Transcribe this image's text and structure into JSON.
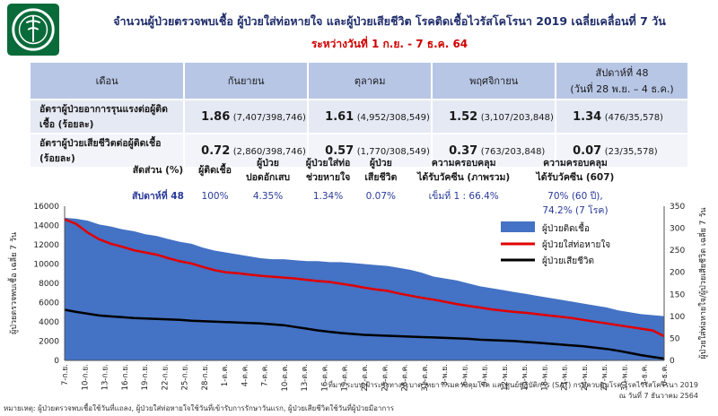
{
  "header": {
    "title": "จำนวนผู้ป่วยตรวจพบเชื้อ ผู้ป่วยใส่ท่อหายใจ และผู้ป่วยเสียชีวิต โรคติดเชื้อไวรัสโคโรนา 2019 เฉลี่ยเคลื่อนที่ 7 วัน",
    "subtitle": "ระหว่างวันที่ 1 ก.ย. - 7 ธ.ค. 64",
    "logo_icon": "moph-emblem-icon",
    "accent_color": "#1f2d6b",
    "subtitle_color": "#d10000"
  },
  "rate_table": {
    "header": [
      "เดือน",
      "กันยายน",
      "ตุลาคม",
      "พฤศจิกายน",
      "สัปดาห์ที่ 48",
      "(วันที่ 28 พ.ย. – 4 ธ.ค.)"
    ],
    "rows": [
      {
        "label": "อัตราผู้ป่วยอาการรุนแรงต่อผู้ติดเชื้อ (ร้อยละ)",
        "cells": [
          [
            "1.86",
            "(7,407/398,746)"
          ],
          [
            "1.61",
            "(4,952/308,549)"
          ],
          [
            "1.52",
            "(3,107/203,848)"
          ],
          [
            "1.34",
            "(476/35,578)"
          ]
        ]
      },
      {
        "label": "อัตราผู้ป่วยเสียชีวิตต่อผู้ติดเชื้อ (ร้อยละ)",
        "cells": [
          [
            "0.72",
            "(2,860/398,746)"
          ],
          [
            "0.57",
            "(1,770/308,549)"
          ],
          [
            "0.37",
            "(763/203,848)"
          ],
          [
            "0.07",
            "(23/35,578)"
          ]
        ]
      }
    ]
  },
  "proportion_table": {
    "headers": [
      "สัดส่วน (%)",
      "ผู้ติดเชื้อ",
      "ผู้ป่วย\nปอดอักเสบ",
      "ผู้ป่วยใส่ท่อ\nช่วยหายใจ",
      "ผู้ป่วย\nเสียชีวิต",
      "ความครอบคลุม\nได้รับวัคซีน (ภาพรวม)",
      "ความครอบคลุม\nได้รับวัคซีน (607)"
    ],
    "values": [
      "สัปดาห์ที่ 48",
      "100%",
      "4.35%",
      "1.34%",
      "0.07%",
      "เข็มที่ 1 : 66.4%",
      "70% (60 ปี),\n74.2% (7 โรค)"
    ]
  },
  "chart_data": {
    "type": "area",
    "xlabel": "",
    "ylabel": "ผู้ป่วยตรวจพบเชื้อ เฉลี่ย 7 วัน",
    "y2label": "ผู้ป่วยใส่ท่อหายใจ/ผู้ป่วยเสียชีวิต เฉลี่ย 7 วัน",
    "ylim": [
      0,
      16000
    ],
    "y2lim": [
      0,
      350
    ],
    "yticks": [
      "0",
      "2000",
      "4000",
      "6000",
      "8000",
      "10000",
      "12000",
      "14000",
      "16000"
    ],
    "y2ticks": [
      "0",
      "50",
      "100",
      "150",
      "200",
      "250",
      "300",
      "350"
    ],
    "x_start": "7-ก.ย.",
    "x_tick_labels": [
      "7-ก.ย.",
      "10-ก.ย.",
      "13-ก.ย.",
      "16-ก.ย.",
      "19-ก.ย.",
      "22-ก.ย.",
      "25-ก.ย.",
      "28-ก.ย.",
      "1-ต.ค.",
      "4-ต.ค.",
      "7-ต.ค.",
      "10-ต.ค.",
      "13-ต.ค.",
      "16-ต.ค.",
      "19-ต.ค.",
      "22-ต.ค.",
      "25-ต.ค.",
      "28-ต.ค.",
      "31-ต.ค.",
      "3-พ.ย.",
      "6-พ.ย.",
      "9-พ.ย.",
      "12-พ.ย.",
      "15-พ.ย.",
      "18-พ.ย.",
      "21-พ.ย.",
      "24-พ.ย.",
      "27-พ.ย.",
      "30-พ.ย.",
      "3-ธ.ค.",
      "6-ธ.ค."
    ],
    "series": [
      {
        "name": "ผู้ป่วยติดเชื้อ",
        "axis": "left",
        "style": "area",
        "color": "#4472c4",
        "values": [
          14800,
          14700,
          14500,
          14100,
          13900,
          13600,
          13400,
          13100,
          12900,
          12600,
          12300,
          12100,
          11700,
          11400,
          11200,
          11000,
          10800,
          10600,
          10500,
          10500,
          10400,
          10300,
          10300,
          10200,
          10200,
          10100,
          10000,
          9900,
          9800,
          9600,
          9400,
          9100,
          8700,
          8500,
          8300,
          8000,
          7700,
          7500,
          7300,
          7100,
          6900,
          6700,
          6500,
          6300,
          6100,
          5900,
          5700,
          5500,
          5200,
          5000,
          4800,
          4700,
          4600
        ]
      },
      {
        "name": "ผู้ป่วยใส่ท่อหายใจ",
        "axis": "right",
        "style": "line",
        "color": "#e00000",
        "values": [
          320,
          310,
          290,
          275,
          265,
          258,
          250,
          245,
          240,
          232,
          225,
          220,
          212,
          205,
          200,
          198,
          195,
          192,
          190,
          188,
          186,
          183,
          180,
          178,
          174,
          170,
          165,
          161,
          158,
          152,
          147,
          142,
          138,
          133,
          128,
          124,
          120,
          116,
          113,
          110,
          108,
          105,
          102,
          99,
          96,
          92,
          88,
          84,
          80,
          76,
          72,
          68,
          55
        ]
      },
      {
        "name": "ผู้ป่วยเสียชีวิต",
        "axis": "right",
        "style": "line",
        "color": "#000000",
        "values": [
          115,
          110,
          106,
          102,
          100,
          98,
          96,
          95,
          94,
          93,
          92,
          90,
          89,
          88,
          87,
          86,
          85,
          84,
          82,
          80,
          76,
          72,
          68,
          65,
          62,
          60,
          58,
          57,
          56,
          55,
          54,
          53,
          52,
          51,
          50,
          49,
          47,
          46,
          45,
          44,
          42,
          40,
          38,
          36,
          34,
          32,
          29,
          26,
          22,
          17,
          12,
          8,
          4
        ]
      }
    ],
    "legend_position": "right",
    "grid": false
  },
  "chart_sources": {
    "line1": "ที่มา: ระบบเฝ้าระวังทางระบาดวิทยา กรมควบคุมโรค และศูนย์ปฏิบัติการ (SAT) กรมควบคุมโรค โรคไวรัสโคโรนา 2019",
    "line2": "ณ วันที่ 7 ธันวาคม 2564"
  },
  "footnote": "หมายเหตุ: ผู้ป่วยตรวจพบเชื้อใช้วันที่แถลง, ผู้ป่วยใส่ท่อหายใจใช้วันที่เข้ารับการรักษาวันแรก, ผู้ป่วยเสียชีวิตใช้วันที่ผู้ป่วยมีอาการ"
}
